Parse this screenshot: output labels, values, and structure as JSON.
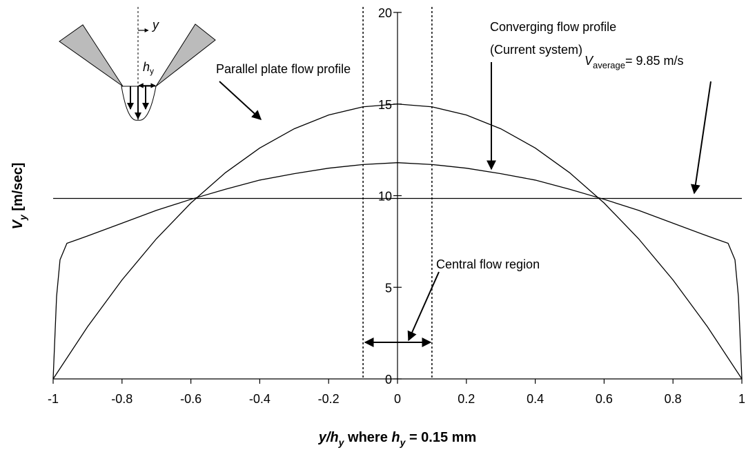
{
  "chart_data": {
    "type": "line",
    "xlim": [
      -1,
      1
    ],
    "ylim": [
      0,
      20
    ],
    "xticks": [
      -1,
      -0.8,
      -0.6,
      -0.4,
      -0.2,
      0,
      0.2,
      0.4,
      0.6,
      0.8,
      1
    ],
    "yticks": [
      0,
      5,
      10,
      15,
      20
    ],
    "x_label": [
      "y/h",
      "y",
      " where ",
      "h",
      "y",
      " = 0.15 mm"
    ],
    "y_label": [
      "V",
      "y",
      " [m/sec]"
    ],
    "vlines": [
      -0.1,
      0.1
    ],
    "annotations": {
      "parallel": "Parallel plate flow profile",
      "converging": [
        "Converging flow profile",
        "(Current system)"
      ],
      "average": [
        "V",
        "average",
        "= 9.85 m/s"
      ],
      "central": "Central flow region"
    },
    "inset": {
      "axis_label": "y",
      "gap_label": [
        "h",
        "y"
      ]
    },
    "series": [
      {
        "color": "#000000",
        "x": [
          -1,
          -0.9,
          -0.8,
          -0.7,
          -0.6,
          -0.5,
          -0.4,
          -0.3,
          -0.2,
          -0.1,
          0,
          0.1,
          0.2,
          0.3,
          0.4,
          0.5,
          0.6,
          0.7,
          0.8,
          0.9,
          1
        ],
        "values": [
          0,
          2.85,
          5.4,
          7.65,
          9.6,
          11.25,
          12.6,
          13.65,
          14.4,
          14.85,
          15,
          14.85,
          14.4,
          13.65,
          12.6,
          11.25,
          9.6,
          7.65,
          5.4,
          2.85,
          0
        ]
      },
      {
        "color": "#000000",
        "x": [
          -1,
          -0.99,
          -0.98,
          -0.96,
          -0.93,
          -0.9,
          -0.8,
          -0.7,
          -0.6,
          -0.5,
          -0.4,
          -0.3,
          -0.2,
          -0.1,
          0,
          0.1,
          0.2,
          0.3,
          0.4,
          0.5,
          0.6,
          0.7,
          0.8,
          0.9,
          0.93,
          0.96,
          0.98,
          0.99,
          1
        ],
        "values": [
          0,
          4.5,
          6.5,
          7.4,
          7.6,
          7.8,
          8.5,
          9.2,
          9.8,
          10.35,
          10.85,
          11.2,
          11.5,
          11.7,
          11.8,
          11.7,
          11.5,
          11.2,
          10.85,
          10.35,
          9.8,
          9.2,
          8.5,
          7.8,
          7.6,
          7.4,
          6.5,
          4.5,
          0
        ]
      },
      {
        "color": "#000000",
        "x": [
          -1,
          1
        ],
        "values": [
          9.85,
          9.85
        ]
      }
    ]
  }
}
